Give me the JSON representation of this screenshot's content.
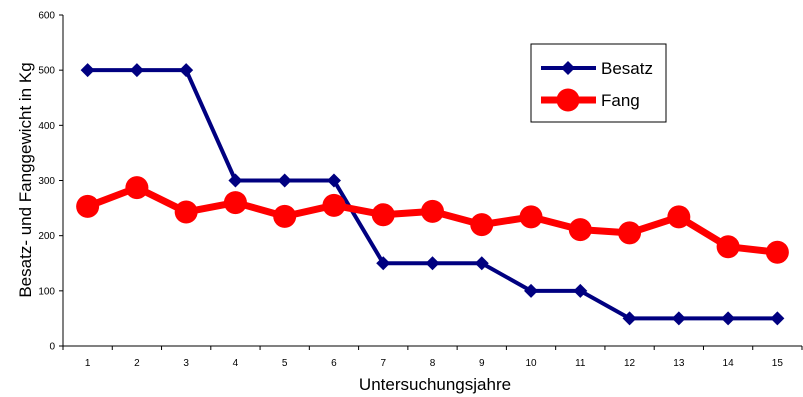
{
  "chart_data": {
    "type": "line",
    "xlabel": "Untersuchungsjahre",
    "ylabel": "Besatz- und Fanggewicht in Kg",
    "categories": [
      "1",
      "2",
      "3",
      "4",
      "5",
      "6",
      "7",
      "8",
      "9",
      "10",
      "11",
      "12",
      "13",
      "14",
      "15"
    ],
    "ylim": [
      0,
      600
    ],
    "yticks": [
      "0",
      "100",
      "200",
      "300",
      "400",
      "500",
      "600"
    ],
    "grid": false,
    "legend_position": "top-right",
    "series": [
      {
        "name": "Besatz",
        "color": "#000080",
        "marker": "diamond",
        "values": [
          500,
          500,
          500,
          300,
          300,
          300,
          150,
          150,
          150,
          100,
          100,
          50,
          50,
          50,
          50
        ]
      },
      {
        "name": "Fang",
        "color": "#ff0000",
        "marker": "circle",
        "values": [
          253,
          287,
          243,
          260,
          235,
          255,
          238,
          244,
          220,
          234,
          211,
          205,
          234,
          180,
          170
        ]
      }
    ]
  }
}
